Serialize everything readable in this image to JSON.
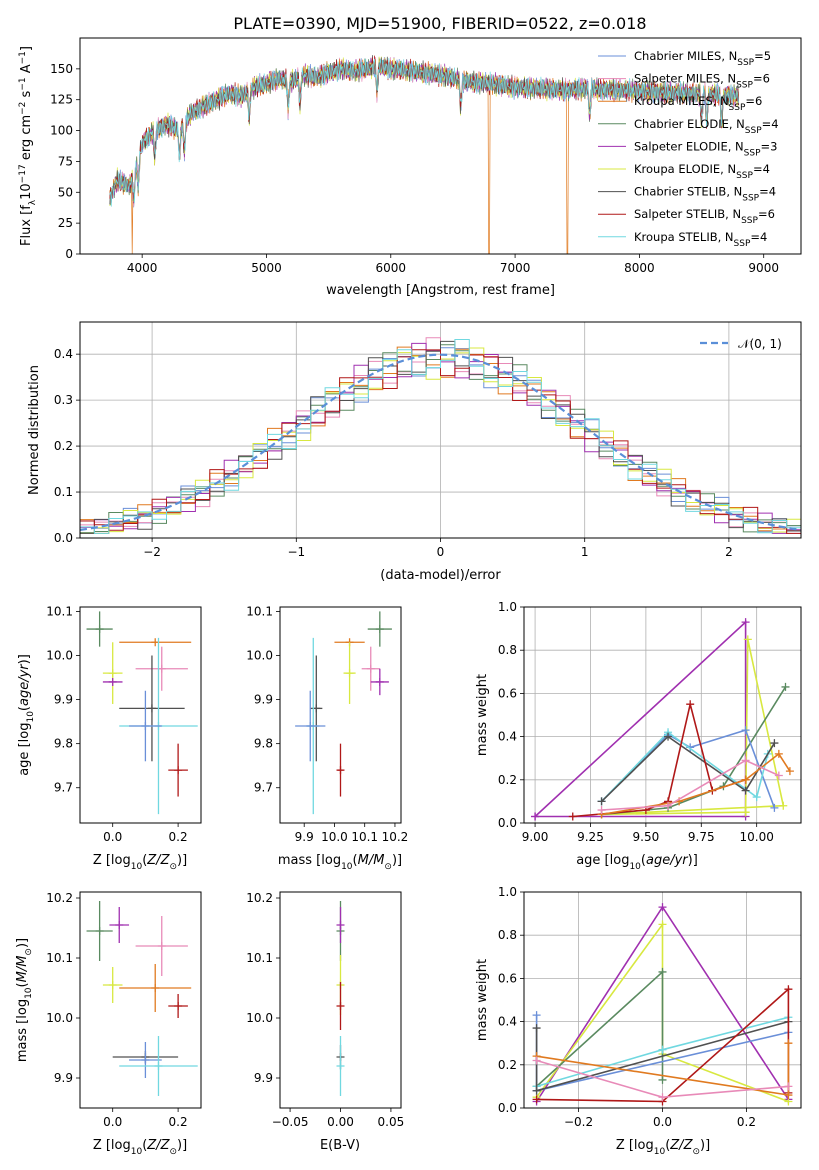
{
  "title": "PLATE=0390, MJD=51900, FIBERID=0522, z=0.018",
  "chart_data": [
    {
      "id": "spectrum",
      "type": "line",
      "xlabel": "wavelength [Angstrom, rest frame]",
      "ylabel": "Flux [f_λ 10^-17 erg cm^-2 s^-1 A^-1]",
      "xlim": [
        3500,
        9300
      ],
      "ylim": [
        0,
        175
      ],
      "xticks": [
        4000,
        5000,
        6000,
        7000,
        8000,
        9000
      ],
      "yticks": [
        0,
        25,
        50,
        75,
        100,
        125,
        150
      ],
      "legend_position": "upper right",
      "series": [
        {
          "name": "Chabrier MILES, N_SSP=5",
          "color": "#6a8fd8"
        },
        {
          "name": "Salpeter MILES, N_SSP=6",
          "color": "#e88ab8"
        },
        {
          "name": "Kroupa MILES, N_SSP=6",
          "color": "#e07a20"
        },
        {
          "name": "Chabrier ELODIE, N_SSP=4",
          "color": "#5a8a60"
        },
        {
          "name": "Salpeter ELODIE, N_SSP=3",
          "color": "#a030b0"
        },
        {
          "name": "Kroupa ELODIE, N_SSP=4",
          "color": "#d8e840"
        },
        {
          "name": "Chabrier STELIB, N_SSP=4",
          "color": "#505050"
        },
        {
          "name": "Salpeter STELIB, N_SSP=6",
          "color": "#b01818"
        },
        {
          "name": "Kroupa STELIB, N_SSP=4",
          "color": "#70d8e0"
        }
      ],
      "continuum": {
        "x": [
          3740,
          3800,
          3900,
          3950,
          4000,
          4100,
          4200,
          4300,
          4400,
          4500,
          4600,
          4700,
          4800,
          4900,
          5000,
          5100,
          5200,
          5300,
          5400,
          5500,
          5600,
          5700,
          5800,
          5900,
          6000,
          6200,
          6400,
          6600,
          6800,
          7000,
          7200,
          7400,
          7600,
          7800,
          8000,
          8200,
          8400,
          8600,
          8800
        ],
        "y": [
          45,
          60,
          55,
          70,
          90,
          100,
          105,
          100,
          115,
          120,
          125,
          130,
          128,
          135,
          138,
          142,
          140,
          145,
          143,
          147,
          150,
          148,
          150,
          153,
          150,
          148,
          145,
          140,
          138,
          135,
          134,
          133,
          134,
          133,
          132,
          131,
          130,
          129,
          128
        ]
      },
      "dropouts": [
        {
          "series": "Kroupa MILES, N_SSP=6",
          "x": 3920
        },
        {
          "series": "Kroupa MILES, N_SSP=6",
          "x": 6790
        },
        {
          "series": "Kroupa MILES, N_SSP=6",
          "x": 7420
        }
      ]
    },
    {
      "id": "residuals",
      "type": "line",
      "xlabel": "(data-model)/error",
      "ylabel": "Normed distribution",
      "xlim": [
        -2.5,
        2.5
      ],
      "ylim": [
        0,
        0.47
      ],
      "xticks": [
        -2,
        -1,
        0,
        1,
        2
      ],
      "yticks": [
        0.0,
        0.1,
        0.2,
        0.3,
        0.4
      ],
      "legend": [
        "𝒩(0, 1)"
      ],
      "gaussian": {
        "mean": 0,
        "sigma": 1,
        "color": "#5a8fd8"
      },
      "bin_width": 0.1
    },
    {
      "id": "age_vs_Z",
      "type": "scatter",
      "xlabel": "Z [log10(Z/Z⊙)]",
      "ylabel": "age [log10(age/yr)]",
      "xlim": [
        -0.1,
        0.27
      ],
      "ylim": [
        9.62,
        10.11
      ],
      "xticks": [
        0.0,
        0.2
      ],
      "yticks": [
        9.7,
        9.8,
        9.9,
        10.0,
        10.1
      ],
      "points": [
        {
          "x": -0.04,
          "y": 10.06,
          "xerr": 0.04,
          "yerr": 0.04,
          "color": "#5a8a60"
        },
        {
          "x": 0.13,
          "y": 10.03,
          "xerr": 0.11,
          "yerr": 0.0,
          "color": "#e07a20"
        },
        {
          "x": 0.15,
          "y": 9.97,
          "xerr": 0.08,
          "yerr": 0.05,
          "color": "#e88ab8"
        },
        {
          "x": 0.0,
          "y": 9.96,
          "xerr": 0.03,
          "yerr": 0.07,
          "color": "#d8e840"
        },
        {
          "x": 0.0,
          "y": 9.94,
          "xerr": 0.03,
          "yerr": 0.0,
          "color": "#a030b0"
        },
        {
          "x": 0.12,
          "y": 9.88,
          "xerr": 0.1,
          "yerr": 0.12,
          "color": "#505050"
        },
        {
          "x": 0.14,
          "y": 9.84,
          "xerr": 0.12,
          "yerr": 0.2,
          "color": "#70d8e0"
        },
        {
          "x": 0.1,
          "y": 9.84,
          "xerr": 0.05,
          "yerr": 0.08,
          "color": "#6a8fd8"
        },
        {
          "x": 0.2,
          "y": 9.74,
          "xerr": 0.03,
          "yerr": 0.06,
          "color": "#b01818"
        }
      ]
    },
    {
      "id": "age_vs_mass",
      "type": "scatter",
      "xlabel": "mass [log10(M/M⊙)]",
      "ylabel": "",
      "xlim": [
        9.82,
        10.22
      ],
      "ylim": [
        9.62,
        10.11
      ],
      "xticks": [
        9.9,
        10.0,
        10.1,
        10.2
      ],
      "yticks": [
        9.7,
        9.8,
        9.9,
        10.0,
        10.1
      ],
      "points": [
        {
          "x": 10.15,
          "y": 10.06,
          "xerr": 0.04,
          "yerr": 0.04,
          "color": "#5a8a60"
        },
        {
          "x": 10.05,
          "y": 10.03,
          "xerr": 0.05,
          "yerr": 0.0,
          "color": "#e07a20"
        },
        {
          "x": 10.12,
          "y": 9.97,
          "xerr": 0.03,
          "yerr": 0.05,
          "color": "#e88ab8"
        },
        {
          "x": 10.05,
          "y": 9.96,
          "xerr": 0.02,
          "yerr": 0.07,
          "color": "#d8e840"
        },
        {
          "x": 10.15,
          "y": 9.94,
          "xerr": 0.03,
          "yerr": 0.03,
          "color": "#a030b0"
        },
        {
          "x": 9.94,
          "y": 9.88,
          "xerr": 0.02,
          "yerr": 0.12,
          "color": "#505050"
        },
        {
          "x": 9.93,
          "y": 9.84,
          "xerr": 0.02,
          "yerr": 0.2,
          "color": "#70d8e0"
        },
        {
          "x": 9.92,
          "y": 9.84,
          "xerr": 0.05,
          "yerr": 0.08,
          "color": "#6a8fd8"
        },
        {
          "x": 10.02,
          "y": 9.74,
          "xerr": 0.01,
          "yerr": 0.06,
          "color": "#b01818"
        }
      ]
    },
    {
      "id": "weight_vs_age",
      "type": "line",
      "xlabel": "age [log10(age/yr)]",
      "ylabel": "mass weight",
      "xlim": [
        8.95,
        10.2
      ],
      "ylim": [
        0,
        1.0
      ],
      "xticks": [
        9.0,
        9.25,
        9.5,
        9.75,
        10.0
      ],
      "yticks": [
        0.0,
        0.2,
        0.4,
        0.6,
        0.8,
        1.0
      ],
      "series": [
        {
          "color": "#a030b0",
          "x": [
            9.0,
            9.95,
            9.95,
            9.0
          ],
          "y": [
            0.03,
            0.93,
            0.03,
            0.03
          ]
        },
        {
          "color": "#d8e840",
          "x": [
            9.95,
            9.96,
            10.12,
            9.3,
            9.95
          ],
          "y": [
            0.05,
            0.85,
            0.08,
            0.04,
            0.05
          ]
        },
        {
          "color": "#5a8a60",
          "x": [
            9.3,
            9.6,
            9.85,
            10.13
          ],
          "y": [
            0.04,
            0.07,
            0.17,
            0.63
          ]
        },
        {
          "color": "#6a8fd8",
          "x": [
            9.3,
            9.6,
            9.7,
            9.95,
            10.08
          ],
          "y": [
            0.1,
            0.41,
            0.35,
            0.43,
            0.07
          ]
        },
        {
          "color": "#70d8e0",
          "x": [
            9.3,
            9.6,
            10.0,
            10.05
          ],
          "y": [
            0.1,
            0.42,
            0.12,
            0.32
          ]
        },
        {
          "color": "#505050",
          "x": [
            9.3,
            9.6,
            9.95,
            10.08
          ],
          "y": [
            0.1,
            0.4,
            0.15,
            0.37
          ]
        },
        {
          "color": "#b01818",
          "x": [
            9.17,
            9.5,
            9.6,
            9.7,
            9.8,
            9.95
          ],
          "y": [
            0.03,
            0.06,
            0.1,
            0.55,
            0.15,
            0.2
          ]
        },
        {
          "color": "#e07a20",
          "x": [
            9.3,
            9.65,
            9.95,
            10.1,
            10.15
          ],
          "y": [
            0.04,
            0.1,
            0.2,
            0.32,
            0.24
          ]
        },
        {
          "color": "#e88ab8",
          "x": [
            9.3,
            9.6,
            9.95,
            10.1
          ],
          "y": [
            0.06,
            0.08,
            0.29,
            0.22
          ]
        }
      ]
    },
    {
      "id": "mass_vs_Z",
      "type": "scatter",
      "xlabel": "Z [log10(Z/Z⊙)]",
      "ylabel": "mass [log10(M/M⊙)]",
      "xlim": [
        -0.1,
        0.27
      ],
      "ylim": [
        9.85,
        10.21
      ],
      "xticks": [
        0.0,
        0.2
      ],
      "yticks": [
        9.9,
        10.0,
        10.1,
        10.2
      ],
      "points": [
        {
          "x": -0.04,
          "y": 10.145,
          "xerr": 0.04,
          "yerr": 0.05,
          "color": "#5a8a60"
        },
        {
          "x": 0.02,
          "y": 10.155,
          "xerr": 0.03,
          "yerr": 0.03,
          "color": "#a030b0"
        },
        {
          "x": 0.15,
          "y": 10.12,
          "xerr": 0.08,
          "yerr": 0.05,
          "color": "#e88ab8"
        },
        {
          "x": 0.0,
          "y": 10.055,
          "xerr": 0.03,
          "yerr": 0.03,
          "color": "#d8e840"
        },
        {
          "x": 0.13,
          "y": 10.05,
          "xerr": 0.11,
          "yerr": 0.04,
          "color": "#e07a20"
        },
        {
          "x": 0.2,
          "y": 10.02,
          "xerr": 0.03,
          "yerr": 0.02,
          "color": "#b01818"
        },
        {
          "x": 0.1,
          "y": 9.935,
          "xerr": 0.1,
          "yerr": 0.01,
          "color": "#505050"
        },
        {
          "x": 0.1,
          "y": 9.93,
          "xerr": 0.05,
          "yerr": 0.03,
          "color": "#6a8fd8"
        },
        {
          "x": 0.14,
          "y": 9.92,
          "xerr": 0.12,
          "yerr": 0.05,
          "color": "#70d8e0"
        }
      ]
    },
    {
      "id": "mass_vs_ebv",
      "type": "scatter",
      "xlabel": "E(B-V)",
      "ylabel": "",
      "xlim": [
        -0.06,
        0.06
      ],
      "ylim": [
        9.85,
        10.21
      ],
      "xticks": [
        -0.05,
        0.0,
        0.05
      ],
      "xticklabels": [
        "−0.05",
        "0.00",
        "0.05"
      ],
      "yticks": [
        9.9,
        10.0,
        10.1,
        10.2
      ],
      "points": [
        {
          "x": 0.0,
          "y": 10.145,
          "yerr": 0.05,
          "color": "#5a8a60"
        },
        {
          "x": 0.0,
          "y": 10.155,
          "yerr": 0.03,
          "color": "#a030b0"
        },
        {
          "x": 0.0,
          "y": 10.055,
          "yerr": 0.05,
          "color": "#d8e840"
        },
        {
          "x": 0.0,
          "y": 10.02,
          "yerr": 0.04,
          "color": "#b01818"
        },
        {
          "x": 0.0,
          "y": 9.935,
          "yerr": 0.02,
          "color": "#505050"
        },
        {
          "x": 0.0,
          "y": 9.92,
          "yerr": 0.05,
          "color": "#70d8e0"
        }
      ]
    },
    {
      "id": "weight_vs_Z",
      "type": "line",
      "xlabel": "Z [log10(Z/Z⊙)]",
      "ylabel": "mass weight",
      "xlim": [
        -0.33,
        0.33
      ],
      "ylim": [
        0,
        1.0
      ],
      "xticks": [
        -0.2,
        0.0,
        0.2
      ],
      "xticklabels": [
        "−0.2",
        "0.0",
        "0.2"
      ],
      "yticks": [
        0.0,
        0.2,
        0.4,
        0.6,
        0.8,
        1.0
      ],
      "series": [
        {
          "color": "#a030b0",
          "x": [
            -0.3,
            0.0,
            0.3
          ],
          "y": [
            0.03,
            0.93,
            0.04
          ]
        },
        {
          "color": "#d8e840",
          "x": [
            -0.3,
            0.0,
            0.0,
            0.3
          ],
          "y": [
            0.05,
            0.85,
            0.25,
            0.03
          ]
        },
        {
          "color": "#5a8a60",
          "x": [
            -0.3,
            0.0,
            0.0
          ],
          "y": [
            0.1,
            0.63,
            0.13
          ]
        },
        {
          "color": "#6a8fd8",
          "x": [
            -0.3,
            -0.3,
            0.3
          ],
          "y": [
            0.43,
            0.08,
            0.35
          ]
        },
        {
          "color": "#70d8e0",
          "x": [
            -0.3,
            0.0,
            0.3
          ],
          "y": [
            0.1,
            0.27,
            0.42
          ]
        },
        {
          "color": "#505050",
          "x": [
            -0.3,
            -0.3,
            0.3
          ],
          "y": [
            0.37,
            0.08,
            0.4
          ]
        },
        {
          "color": "#b01818",
          "x": [
            -0.3,
            0.0,
            0.3,
            0.3
          ],
          "y": [
            0.04,
            0.03,
            0.55,
            0.07
          ]
        },
        {
          "color": "#e07a20",
          "x": [
            -0.3,
            0.3,
            0.3
          ],
          "y": [
            0.24,
            0.06,
            0.3
          ]
        },
        {
          "color": "#e88ab8",
          "x": [
            -0.3,
            0.0,
            0.3
          ],
          "y": [
            0.22,
            0.05,
            0.1
          ]
        }
      ]
    }
  ]
}
